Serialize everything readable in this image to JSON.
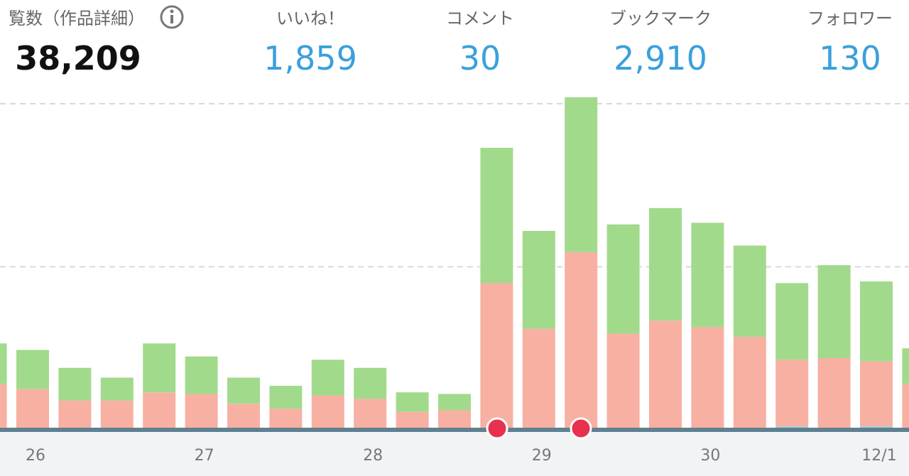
{
  "stats": [
    {
      "label": "覧数（作品詳細）",
      "value": "38,209"
    },
    {
      "label": "いいね！",
      "value": "1,859"
    },
    {
      "label": "コメント",
      "value": "30"
    },
    {
      "label": "ブックマーク",
      "value": "2,910"
    },
    {
      "label": "フォロワー",
      "value": "130"
    }
  ],
  "chart_data": {
    "type": "bar",
    "stacked": true,
    "categories": [
      null,
      "26",
      null,
      null,
      null,
      "27",
      null,
      null,
      null,
      "28",
      null,
      null,
      null,
      "29",
      null,
      null,
      null,
      "30",
      null,
      null,
      null,
      "12/1",
      null
    ],
    "series": [
      {
        "color": "#8fd3e8",
        "values": [
          1,
          1,
          1,
          1,
          1,
          1,
          1,
          1,
          1,
          1,
          1,
          1,
          1,
          1,
          1,
          1,
          1,
          1,
          1,
          2,
          1,
          2,
          1
        ]
      },
      {
        "color": "#f7b0a2",
        "values": [
          27,
          24,
          17,
          17,
          22,
          21,
          15,
          12,
          20,
          18,
          10,
          11,
          89,
          61,
          108,
          58,
          66,
          62,
          56,
          41,
          43,
          40,
          27
        ]
      },
      {
        "color": "#a2da8c",
        "values": [
          25,
          24,
          20,
          14,
          30,
          23,
          16,
          14,
          22,
          19,
          12,
          10,
          83,
          60,
          95,
          67,
          69,
          64,
          56,
          47,
          57,
          49,
          22
        ]
      }
    ],
    "ylim": [
      0,
      210
    ],
    "gridlines": [
      100,
      200
    ],
    "grid": true
  }
}
